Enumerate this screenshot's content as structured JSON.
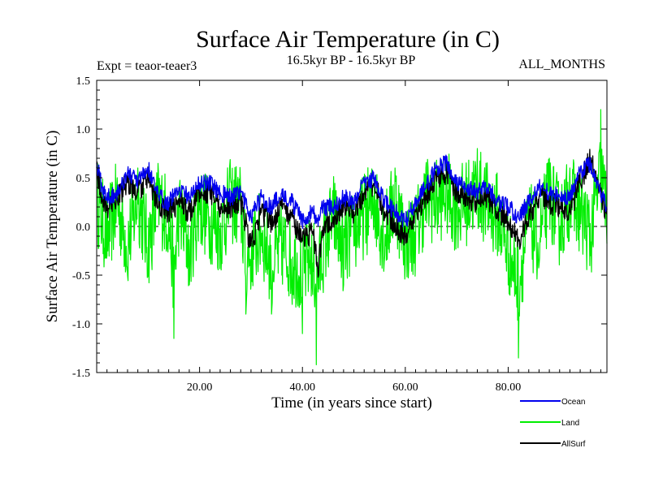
{
  "chart_data": {
    "type": "line",
    "title": "Surface Air Temperature (in C)",
    "expt_label": "Expt = teaor-teaer3",
    "period_label": "16.5kyr BP - 16.5kyr BP",
    "months_label": "ALL_MONTHS",
    "xlabel": "Time (in years since start)",
    "ylabel": "Surface Air Temperature (in C)",
    "xlim": [
      0,
      99.2
    ],
    "ylim": [
      -1.5,
      1.5
    ],
    "x_ticks": [
      20,
      40,
      60,
      80
    ],
    "x_tick_labels": [
      "20.00",
      "40.00",
      "60.00",
      "80.00"
    ],
    "y_ticks": [
      -1.5,
      -1.0,
      -0.5,
      0.0,
      0.5,
      1.0,
      1.5
    ],
    "y_tick_labels": [
      "-1.5",
      "-1.0",
      "-0.5",
      "0.0",
      "0.5",
      "1.0",
      "1.5"
    ],
    "zero_line": true,
    "legend_position": "bottom-right",
    "series": [
      {
        "name": "Land",
        "color": "#00ee00",
        "x": [
          0,
          2,
          4,
          6,
          8,
          10,
          12,
          14,
          15,
          16,
          18,
          20,
          22,
          24,
          26,
          28,
          29,
          30,
          32,
          34,
          36,
          38,
          40,
          42,
          42.7,
          44,
          46,
          48,
          50,
          52,
          54,
          56,
          58,
          60,
          62,
          64,
          66,
          68,
          70,
          72,
          74,
          76,
          78,
          80,
          82,
          84,
          86,
          88,
          90,
          92,
          94,
          96,
          98,
          99
        ],
        "values": [
          0.55,
          -0.3,
          0.5,
          -0.5,
          0.6,
          -0.5,
          0.55,
          0.1,
          -1.15,
          0.3,
          -0.6,
          0.4,
          0.1,
          -0.2,
          0.5,
          0.4,
          -0.9,
          -0.6,
          -0.2,
          -0.9,
          -0.5,
          -0.8,
          -1.1,
          -0.7,
          -1.42,
          -0.6,
          0.2,
          -0.6,
          -0.2,
          0.2,
          0.5,
          -0.3,
          0.6,
          -0.4,
          -0.2,
          0.6,
          0.5,
          0.7,
          0.3,
          0.5,
          0.8,
          0.4,
          0.2,
          -0.6,
          -1.35,
          0.0,
          -0.4,
          0.7,
          0.0,
          0.6,
          0.3,
          -0.3,
          1.2,
          0.4
        ]
      },
      {
        "name": "Ocean",
        "color": "#0000ee",
        "x": [
          0,
          1,
          2,
          4,
          6,
          8,
          10,
          12,
          14,
          16,
          18,
          20,
          22,
          24,
          26,
          28,
          30,
          32,
          34,
          36,
          38,
          40,
          42,
          43,
          44,
          46,
          48,
          50,
          52,
          54,
          56,
          58,
          60,
          62,
          64,
          66,
          68,
          70,
          72,
          74,
          76,
          78,
          80,
          82,
          84,
          86,
          88,
          90,
          92,
          94,
          96,
          98,
          99
        ],
        "values": [
          0.65,
          0.4,
          0.3,
          0.35,
          0.55,
          0.45,
          0.6,
          0.3,
          0.25,
          0.4,
          0.3,
          0.45,
          0.45,
          0.35,
          0.3,
          0.35,
          0.1,
          0.3,
          0.2,
          0.35,
          0.25,
          0.05,
          0.15,
          0.05,
          0.2,
          0.2,
          0.3,
          0.25,
          0.45,
          0.5,
          0.25,
          0.15,
          0.05,
          0.25,
          0.4,
          0.6,
          0.65,
          0.45,
          0.4,
          0.35,
          0.4,
          0.25,
          0.2,
          0.1,
          0.25,
          0.4,
          0.35,
          0.3,
          0.3,
          0.55,
          0.65,
          0.35,
          0.2
        ]
      },
      {
        "name": "AllSurf",
        "color": "#000000",
        "x": [
          0,
          1,
          2,
          4,
          6,
          8,
          10,
          12,
          14,
          16,
          18,
          20,
          22,
          24,
          26,
          28,
          30,
          32,
          34,
          36,
          38,
          40,
          42,
          43,
          44,
          46,
          48,
          50,
          52,
          54,
          56,
          58,
          60,
          62,
          64,
          66,
          68,
          70,
          72,
          74,
          76,
          78,
          80,
          82,
          84,
          86,
          88,
          90,
          92,
          94,
          96,
          98,
          99
        ],
        "values": [
          0.6,
          0.3,
          0.2,
          0.3,
          0.45,
          0.35,
          0.5,
          0.2,
          0.15,
          0.25,
          0.15,
          0.35,
          0.35,
          0.2,
          0.2,
          0.25,
          -0.2,
          0.15,
          0.05,
          0.2,
          0.1,
          -0.15,
          -0.05,
          -0.45,
          0.0,
          0.1,
          0.2,
          0.15,
          0.35,
          0.45,
          0.15,
          0.0,
          -0.1,
          0.15,
          0.3,
          0.5,
          0.55,
          0.35,
          0.3,
          0.25,
          0.3,
          0.15,
          0.05,
          -0.15,
          0.1,
          0.3,
          0.25,
          0.2,
          0.15,
          0.45,
          0.7,
          0.3,
          0.15
        ]
      }
    ],
    "legend": [
      {
        "name": "Ocean",
        "color": "#0000ee"
      },
      {
        "name": "Land",
        "color": "#00ee00"
      },
      {
        "name": "AllSurf",
        "color": "#000000"
      }
    ]
  }
}
